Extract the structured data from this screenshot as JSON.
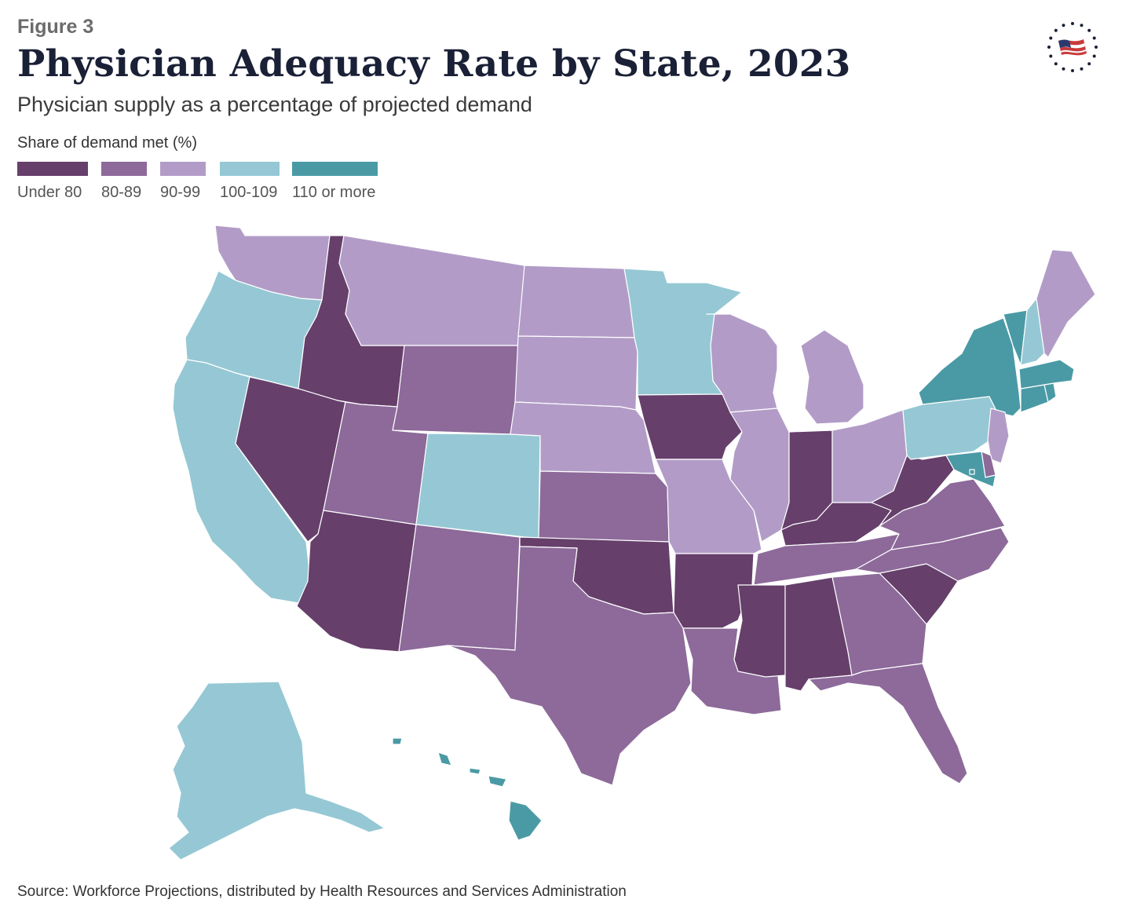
{
  "figure_label": "Figure 3",
  "title": "Physician Adequacy Rate by State, 2023",
  "subtitle": "Physician supply as a percentage of projected demand",
  "legend": {
    "title": "Share of demand met (%)",
    "items": [
      {
        "label": "Under 80",
        "color": "#663f6b"
      },
      {
        "label": "80-89",
        "color": "#8d6a9a"
      },
      {
        "label": "90-99",
        "color": "#b29cc7"
      },
      {
        "label": "100-109",
        "color": "#95c8d4"
      },
      {
        "label": "110 or more",
        "color": "#4a9aa5"
      }
    ]
  },
  "source": "Source: Workforce Projections, distributed by Health Resources and Services Administration",
  "logo_icon": "flag-stars-logo-icon",
  "map_data": {
    "type": "choropleth",
    "regions": [
      {
        "state": "WA",
        "bin": "90-99"
      },
      {
        "state": "OR",
        "bin": "100-109"
      },
      {
        "state": "CA",
        "bin": "100-109"
      },
      {
        "state": "ID",
        "bin": "Under 80"
      },
      {
        "state": "NV",
        "bin": "Under 80"
      },
      {
        "state": "AZ",
        "bin": "Under 80"
      },
      {
        "state": "MT",
        "bin": "90-99"
      },
      {
        "state": "WY",
        "bin": "80-89"
      },
      {
        "state": "UT",
        "bin": "80-89"
      },
      {
        "state": "CO",
        "bin": "100-109"
      },
      {
        "state": "NM",
        "bin": "80-89"
      },
      {
        "state": "ND",
        "bin": "90-99"
      },
      {
        "state": "SD",
        "bin": "90-99"
      },
      {
        "state": "NE",
        "bin": "90-99"
      },
      {
        "state": "KS",
        "bin": "80-89"
      },
      {
        "state": "OK",
        "bin": "Under 80"
      },
      {
        "state": "TX",
        "bin": "80-89"
      },
      {
        "state": "MN",
        "bin": "100-109"
      },
      {
        "state": "IA",
        "bin": "Under 80"
      },
      {
        "state": "MO",
        "bin": "90-99"
      },
      {
        "state": "AR",
        "bin": "Under 80"
      },
      {
        "state": "LA",
        "bin": "80-89"
      },
      {
        "state": "WI",
        "bin": "90-99"
      },
      {
        "state": "IL",
        "bin": "90-99"
      },
      {
        "state": "MI",
        "bin": "90-99"
      },
      {
        "state": "IN",
        "bin": "Under 80"
      },
      {
        "state": "OH",
        "bin": "90-99"
      },
      {
        "state": "KY",
        "bin": "Under 80"
      },
      {
        "state": "TN",
        "bin": "80-89"
      },
      {
        "state": "MS",
        "bin": "Under 80"
      },
      {
        "state": "AL",
        "bin": "Under 80"
      },
      {
        "state": "GA",
        "bin": "80-89"
      },
      {
        "state": "FL",
        "bin": "80-89"
      },
      {
        "state": "SC",
        "bin": "Under 80"
      },
      {
        "state": "NC",
        "bin": "80-89"
      },
      {
        "state": "VA",
        "bin": "80-89"
      },
      {
        "state": "WV",
        "bin": "Under 80"
      },
      {
        "state": "PA",
        "bin": "100-109"
      },
      {
        "state": "NY",
        "bin": "110 or more"
      },
      {
        "state": "NJ",
        "bin": "90-99"
      },
      {
        "state": "DE",
        "bin": "80-89"
      },
      {
        "state": "MD",
        "bin": "110 or more"
      },
      {
        "state": "DC",
        "bin": "110 or more"
      },
      {
        "state": "CT",
        "bin": "110 or more"
      },
      {
        "state": "RI",
        "bin": "110 or more"
      },
      {
        "state": "MA",
        "bin": "110 or more"
      },
      {
        "state": "VT",
        "bin": "110 or more"
      },
      {
        "state": "NH",
        "bin": "100-109"
      },
      {
        "state": "ME",
        "bin": "90-99"
      },
      {
        "state": "AK",
        "bin": "100-109"
      },
      {
        "state": "HI",
        "bin": "110 or more"
      }
    ]
  }
}
